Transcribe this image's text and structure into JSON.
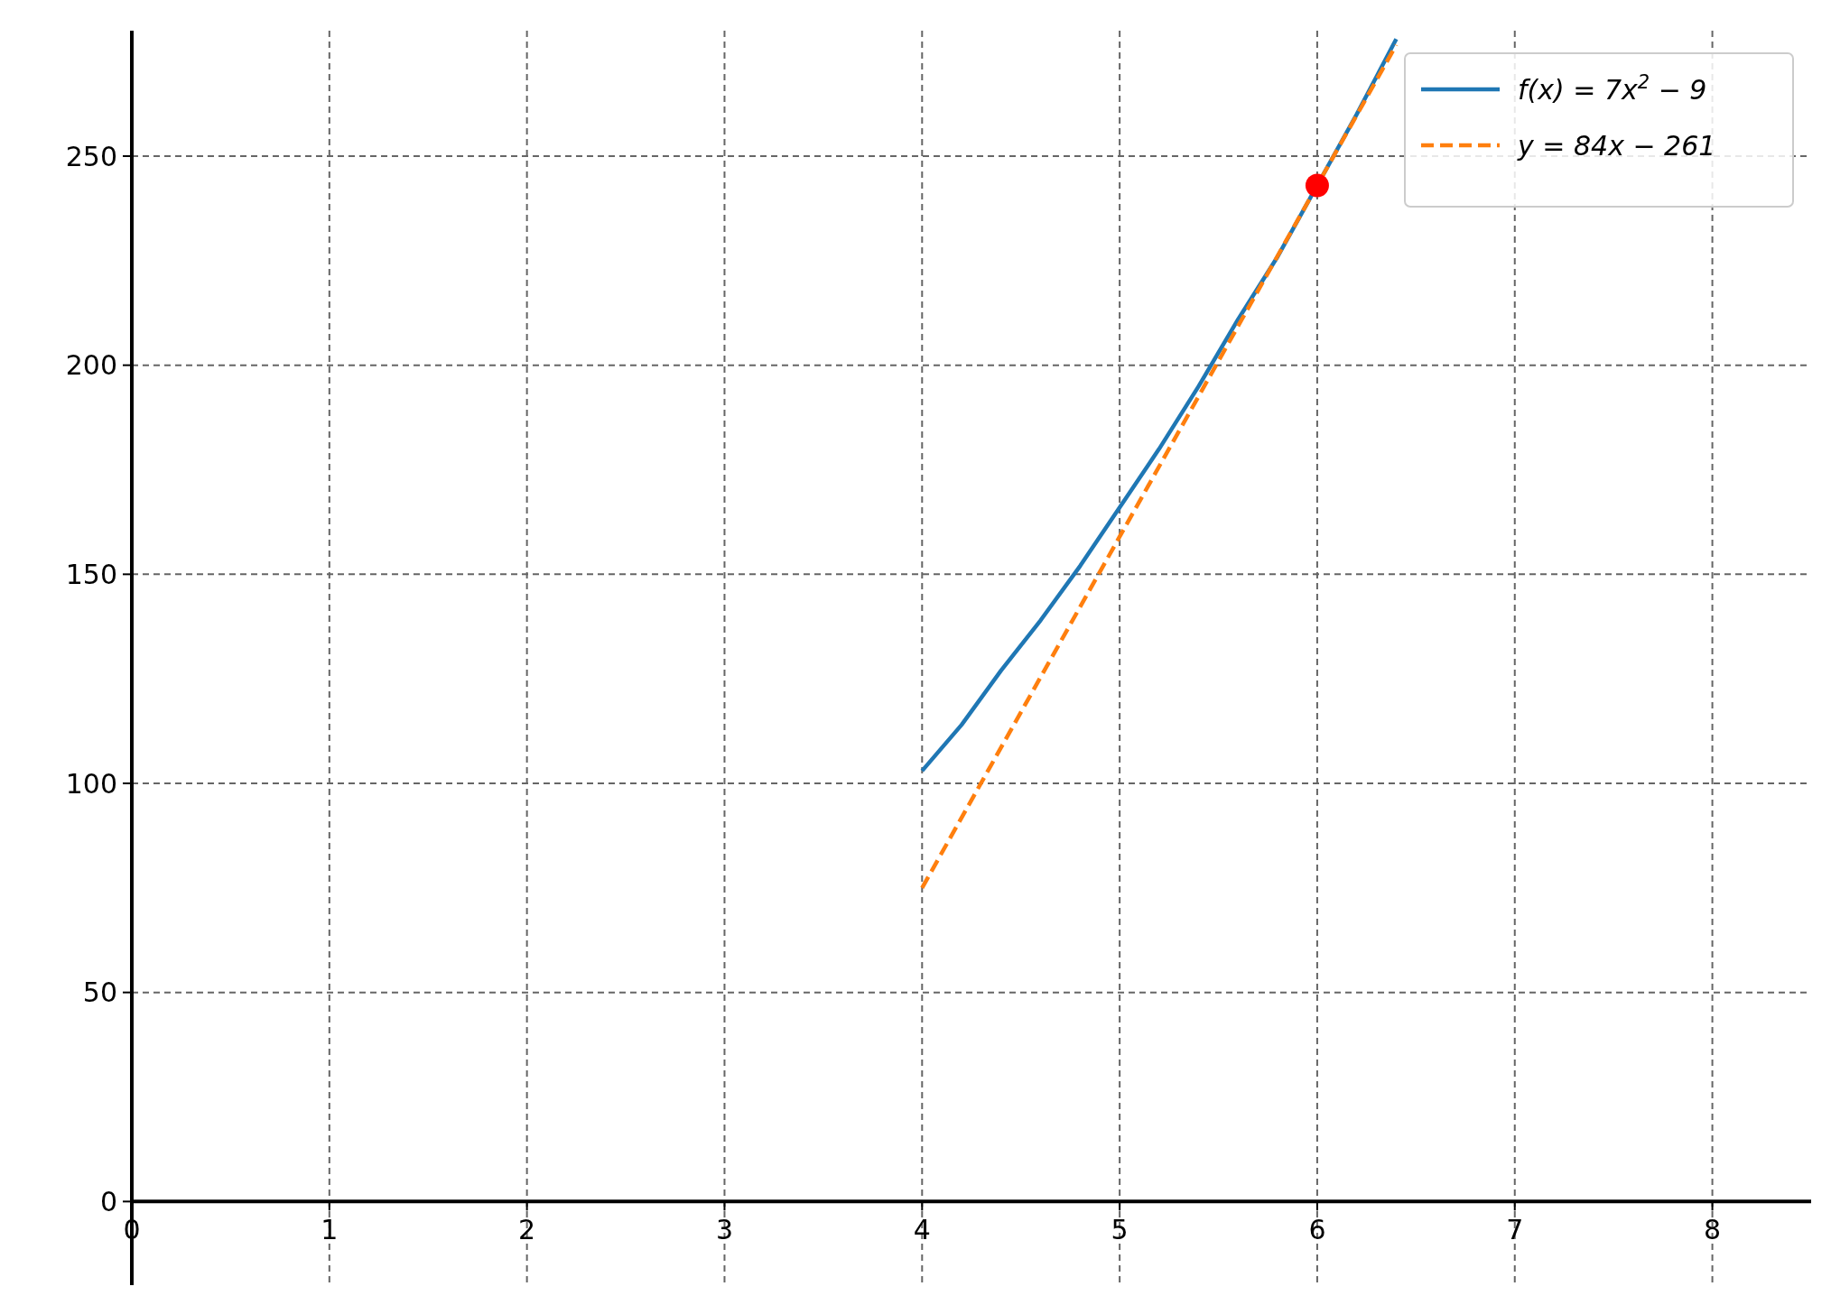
{
  "chart_data": {
    "type": "line",
    "xlim": [
      0,
      8.5
    ],
    "ylim": [
      -20,
      280
    ],
    "xticks": [
      0,
      1,
      2,
      3,
      4,
      5,
      6,
      7,
      8
    ],
    "yticks": [
      0,
      50,
      100,
      150,
      200,
      250
    ],
    "grid": true,
    "legend": "top right",
    "series": [
      {
        "name": "f(x) = 7x$^{2}$ − 9",
        "color": "#1f77b4",
        "line_style": "solid",
        "x": [
          4,
          4.2,
          4.4,
          4.6,
          4.8,
          5,
          5.2,
          5.4,
          5.6,
          5.8,
          6.2,
          6.4
        ],
        "values": [
          103,
          114,
          127,
          139,
          152,
          166,
          180,
          195,
          211,
          226,
          260,
          278
        ]
      },
      {
        "name": "y = 84x − 261",
        "color": "#ff7f0e",
        "line_style": "dashed",
        "x": [
          4,
          6.4
        ],
        "values": [
          75,
          276.6
        ]
      },
      {
        "type": "scatter",
        "color": "#ff0000",
        "x": [
          6
        ],
        "values": [
          243
        ]
      }
    ]
  }
}
